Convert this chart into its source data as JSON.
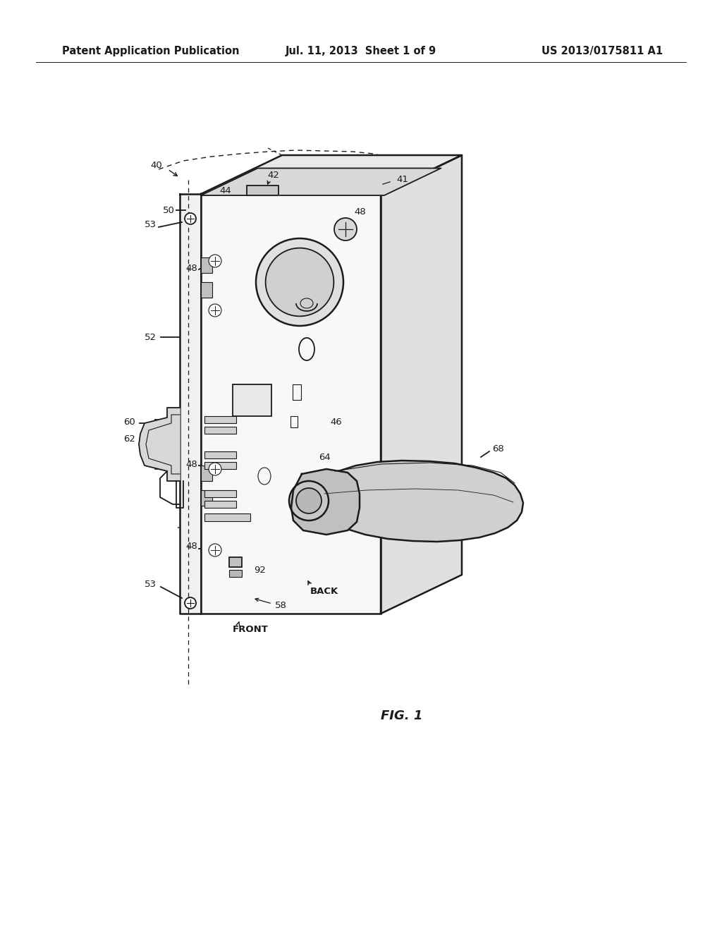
{
  "header_left": "Patent Application Publication",
  "header_mid": "Jul. 11, 2013  Sheet 1 of 9",
  "header_right": "US 2013/0175811 A1",
  "figure_label": "FIG. 1",
  "bg_color": "#ffffff",
  "line_color": "#1a1a1a",
  "header_fontsize": 10.5,
  "label_fontsize": 9.5,
  "fig_label_fontsize": 13
}
